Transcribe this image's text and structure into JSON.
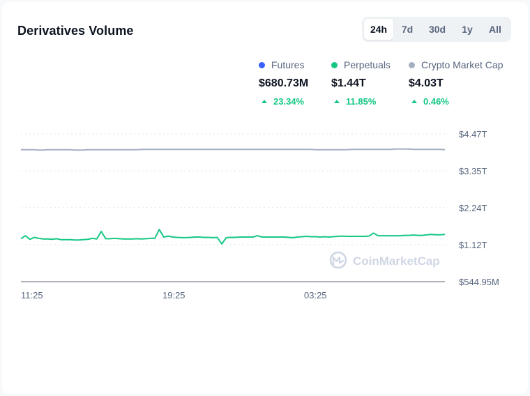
{
  "header": {
    "title": "Derivatives Volume"
  },
  "range_tabs": [
    {
      "label": "24h",
      "active": true
    },
    {
      "label": "7d",
      "active": false
    },
    {
      "label": "30d",
      "active": false
    },
    {
      "label": "1y",
      "active": false
    },
    {
      "label": "All",
      "active": false
    }
  ],
  "legend": [
    {
      "name": "Futures",
      "value": "$680.73M",
      "change": "23.34%",
      "color": "#3861fb"
    },
    {
      "name": "Perpetuals",
      "value": "$1.44T",
      "change": "11.85%",
      "color": "#16c784"
    },
    {
      "name": "Crypto Market Cap",
      "value": "$4.03T",
      "change": "0.46%",
      "color": "#a6b0c3"
    }
  ],
  "watermark": "CoinMarketCap",
  "chart_data": {
    "type": "line",
    "x_ticks": [
      "11:25",
      "19:25",
      "03:25"
    ],
    "y_ticks": [
      "$4.47T",
      "$3.35T",
      "$2.24T",
      "$1.12T",
      "$544.95M"
    ],
    "y_tick_values": [
      4.47,
      3.35,
      2.24,
      1.12,
      0.00054495
    ],
    "ylim": [
      0.00054495,
      4.47
    ],
    "grid": true,
    "series": [
      {
        "name": "Crypto Market Cap",
        "color": "#a6b0c3",
        "values": [
          3.99,
          3.99,
          3.99,
          3.99,
          3.98,
          3.98,
          3.99,
          3.99,
          3.99,
          3.99,
          3.99,
          3.99,
          3.98,
          3.98,
          3.98,
          3.99,
          3.99,
          3.99,
          3.99,
          3.99,
          3.99,
          3.99,
          3.99,
          3.99,
          3.99,
          3.99,
          3.99,
          4.0,
          4.0,
          4.0,
          4.0,
          4.0,
          4.0,
          4.0,
          4.0,
          4.0,
          4.0,
          4.0,
          4.0,
          4.0,
          4.0,
          4.0,
          4.0,
          4.0,
          4.0,
          4.0,
          4.0,
          4.0,
          4.0,
          4.0,
          4.0,
          4.0,
          4.0,
          4.0,
          4.0,
          4.0,
          4.0,
          4.0,
          4.0,
          4.0,
          4.0,
          4.0,
          4.0,
          4.0,
          4.0,
          4.0,
          3.99,
          3.99,
          3.99,
          3.99,
          3.99,
          3.99,
          3.99,
          3.99,
          4.0,
          4.0,
          4.0,
          4.0,
          4.0,
          4.0,
          4.0,
          4.0,
          4.0,
          4.0,
          4.01,
          4.01,
          4.01,
          4.01,
          4.0,
          4.0,
          4.0,
          4.0,
          4.0,
          4.0,
          4.0,
          3.99
        ]
      },
      {
        "name": "Perpetuals",
        "color": "#16c784",
        "values": [
          1.3,
          1.39,
          1.28,
          1.34,
          1.31,
          1.29,
          1.29,
          1.28,
          1.3,
          1.27,
          1.27,
          1.27,
          1.26,
          1.26,
          1.27,
          1.28,
          1.31,
          1.29,
          1.52,
          1.3,
          1.3,
          1.31,
          1.3,
          1.29,
          1.29,
          1.29,
          1.3,
          1.29,
          1.3,
          1.31,
          1.31,
          1.58,
          1.35,
          1.38,
          1.35,
          1.34,
          1.33,
          1.33,
          1.34,
          1.35,
          1.35,
          1.34,
          1.34,
          1.33,
          1.34,
          1.14,
          1.33,
          1.34,
          1.34,
          1.35,
          1.35,
          1.35,
          1.35,
          1.39,
          1.35,
          1.35,
          1.35,
          1.35,
          1.35,
          1.35,
          1.34,
          1.33,
          1.35,
          1.36,
          1.37,
          1.36,
          1.36,
          1.35,
          1.36,
          1.35,
          1.36,
          1.37,
          1.38,
          1.37,
          1.37,
          1.37,
          1.37,
          1.37,
          1.38,
          1.47,
          1.39,
          1.39,
          1.39,
          1.39,
          1.39,
          1.39,
          1.4,
          1.4,
          1.41,
          1.4,
          1.4,
          1.42,
          1.43,
          1.42,
          1.42,
          1.43
        ]
      }
    ]
  }
}
